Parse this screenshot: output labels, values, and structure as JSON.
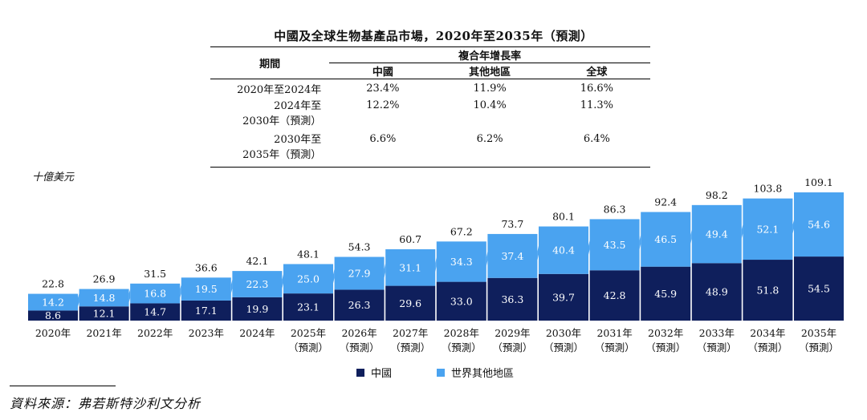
{
  "title": "中國及全球生物基產品市場，2020年至2035年（預測）",
  "cagr_table": {
    "period_header": "期間",
    "group_header": "複合年增長率",
    "columns": [
      "中國",
      "其他地區",
      "全球"
    ],
    "rows": [
      {
        "period_lines": [
          "2020年至2024年"
        ],
        "values": [
          "23.4%",
          "11.9%",
          "16.6%"
        ]
      },
      {
        "period_lines": [
          "2024年至",
          "2030年（預測）"
        ],
        "values": [
          "12.2%",
          "10.4%",
          "11.3%"
        ]
      },
      {
        "period_lines": [
          "2030年至",
          "2035年（預測）"
        ],
        "values": [
          "6.6%",
          "6.2%",
          "6.4%"
        ]
      }
    ]
  },
  "unit_label": "十億美元",
  "legend": {
    "china": "中國",
    "rest": "世界其他地區"
  },
  "colors": {
    "china": "#0f1f5c",
    "rest": "#4aa3f0",
    "connector": "#4aa3f0"
  },
  "source": "資料來源：弗若斯特沙利文分析",
  "chart_data": {
    "type": "bar",
    "stacked": true,
    "categories": [
      [
        "2020年"
      ],
      [
        "2021年"
      ],
      [
        "2022年"
      ],
      [
        "2023年"
      ],
      [
        "2024年"
      ],
      [
        "2025年",
        "（預測）"
      ],
      [
        "2026年",
        "（預測）"
      ],
      [
        "2027年",
        "（預測）"
      ],
      [
        "2028年",
        "（預測）"
      ],
      [
        "2029年",
        "（預測）"
      ],
      [
        "2030年",
        "（預測）"
      ],
      [
        "2031年",
        "（預測）"
      ],
      [
        "2032年",
        "（預測）"
      ],
      [
        "2033年",
        "（預測）"
      ],
      [
        "2034年",
        "（預測）"
      ],
      [
        "2035年",
        "（預測）"
      ]
    ],
    "series": [
      {
        "name": "中國",
        "values": [
          8.6,
          12.1,
          14.7,
          17.1,
          19.9,
          23.1,
          26.3,
          29.6,
          33.0,
          36.3,
          39.7,
          42.8,
          45.9,
          48.9,
          51.8,
          54.5
        ]
      },
      {
        "name": "世界其他地區",
        "values": [
          14.2,
          14.8,
          16.8,
          19.5,
          22.3,
          25.0,
          27.9,
          31.1,
          34.3,
          37.4,
          40.4,
          43.5,
          46.5,
          49.4,
          52.1,
          54.6
        ]
      }
    ],
    "totals": [
      "22.8",
      "26.9",
      "31.5",
      "36.6",
      "42.1",
      "48.1",
      "54.3",
      "60.7",
      "67.2",
      "73.7",
      "80.1",
      "86.3",
      "92.4",
      "98.2",
      "103.8",
      "109.1"
    ],
    "series_labels": {
      "china": [
        "8.6",
        "12.1",
        "14.7",
        "17.1",
        "19.9",
        "23.1",
        "26.3",
        "29.6",
        "33.0",
        "36.3",
        "39.7",
        "42.8",
        "45.9",
        "48.9",
        "51.8",
        "54.5"
      ],
      "rest": [
        "14.2",
        "14.8",
        "16.8",
        "19.5",
        "22.3",
        "25.0",
        "27.9",
        "31.1",
        "34.3",
        "37.4",
        "40.4",
        "43.5",
        "46.5",
        "49.4",
        "52.1",
        "54.6"
      ]
    },
    "ylim": [
      0,
      109.1
    ],
    "ylabel": "十億美元",
    "grid": false,
    "legend_position": "bottom-center"
  }
}
